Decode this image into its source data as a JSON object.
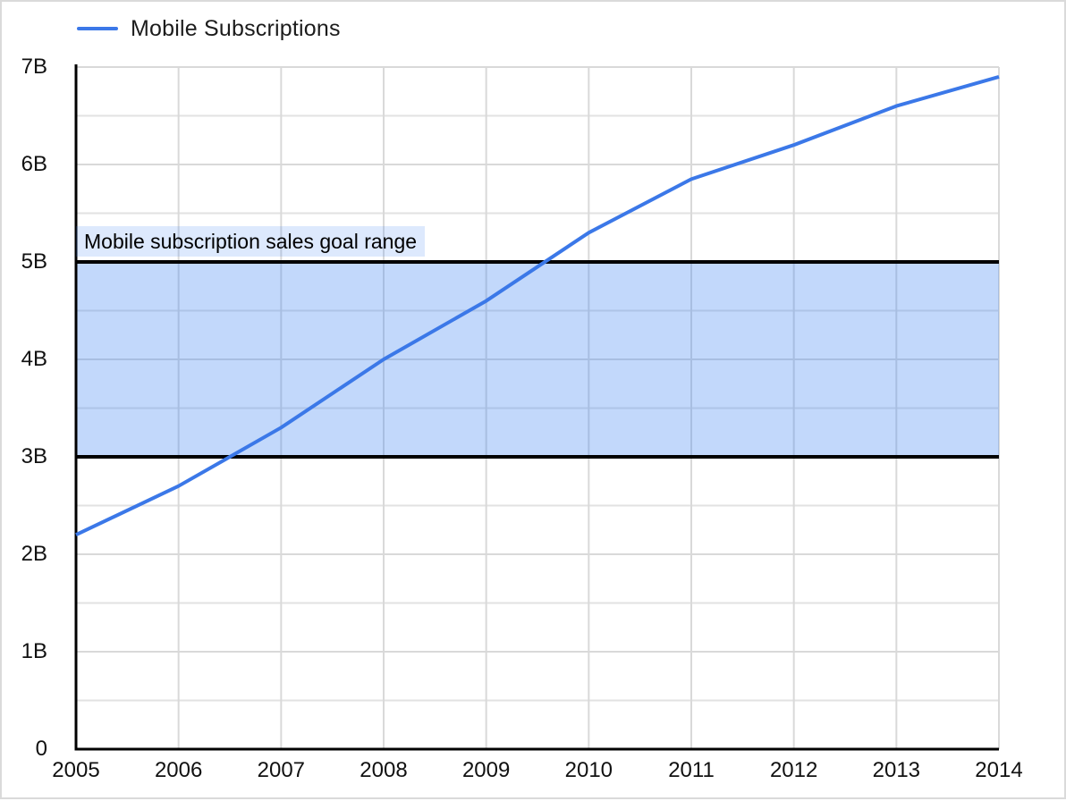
{
  "window": {
    "background_color": "#ffffff",
    "border_color": "#dadada"
  },
  "legend": {
    "label": "Mobile Subscriptions",
    "swatch_color": "#3b78e8",
    "position": "top-left"
  },
  "chart_data": {
    "type": "line",
    "title": "",
    "xlabel": "",
    "ylabel": "",
    "x": [
      2005,
      2006,
      2007,
      2008,
      2009,
      2010,
      2011,
      2012,
      2013,
      2014
    ],
    "x_tick_labels": [
      "2005",
      "2006",
      "2007",
      "2008",
      "2009",
      "2010",
      "2011",
      "2012",
      "2013",
      "2014"
    ],
    "series": [
      {
        "name": "Mobile Subscriptions",
        "color": "#3b78e8",
        "values": [
          2.2,
          2.7,
          3.3,
          4.0,
          4.6,
          5.3,
          5.85,
          6.2,
          6.6,
          6.9
        ],
        "unit": "billions"
      }
    ],
    "ylim": [
      0,
      7
    ],
    "y_tick_values": [
      0,
      1,
      2,
      3,
      4,
      5,
      6,
      7
    ],
    "y_tick_labels": [
      "0",
      "1B",
      "2B",
      "3B",
      "4B",
      "5B",
      "6B",
      "7B"
    ],
    "grid": {
      "visible": true,
      "major_step": 1,
      "minor_step": 0.5,
      "major_color": "#d9d9d9",
      "minor_color": "#e2e2e2"
    },
    "axis_color": "#000000",
    "legend_position": "top-left",
    "band": {
      "from": 3,
      "to": 5,
      "fill": "rgba(66,133,244,0.32)",
      "border_color": "#000000",
      "label": "Mobile subscription sales goal range",
      "label_bg": "rgba(66,133,244,0.18)"
    }
  }
}
